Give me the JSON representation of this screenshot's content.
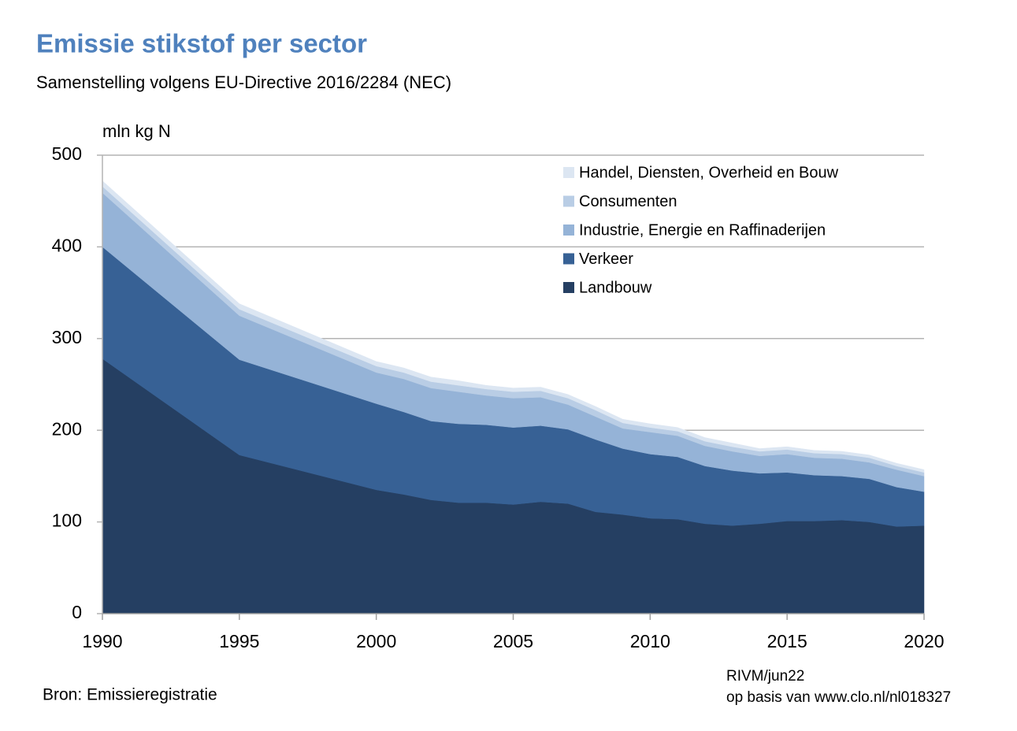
{
  "chart_data": {
    "type": "stacked-area",
    "title": "Emissie stikstof per sector",
    "subtitle": "Samenstelling volgens EU-Directive 2016/2284 (NEC)",
    "y_label": "mln kg N",
    "source": "Bron: Emissieregistratie",
    "notes": [
      "RIVM/jun22",
      "op basis van www.clo.nl/nl018327"
    ],
    "x": [
      1990,
      1995,
      2000,
      2001,
      2002,
      2003,
      2004,
      2005,
      2006,
      2007,
      2008,
      2009,
      2010,
      2011,
      2012,
      2013,
      2014,
      2015,
      2016,
      2017,
      2018,
      2019,
      2020
    ],
    "series": [
      {
        "name": "Landbouw",
        "color": "#253f62",
        "values": [
          278,
          173,
          135,
          130,
          124,
          121,
          121,
          119,
          122,
          120,
          111,
          108,
          104,
          103,
          98,
          96,
          98,
          101,
          101,
          102,
          100,
          95,
          96
        ]
      },
      {
        "name": "Verkeer",
        "color": "#376195",
        "values": [
          122,
          104,
          94,
          90,
          86,
          86,
          85,
          84,
          83,
          81,
          79,
          72,
          70,
          68,
          63,
          60,
          55,
          53,
          50,
          48,
          47,
          43,
          37
        ]
      },
      {
        "name": "Industrie, Energie en Raffinaderijen",
        "color": "#95b3d7",
        "values": [
          59,
          48,
          34,
          36,
          36,
          35,
          32,
          32,
          31,
          27,
          25,
          22,
          24,
          23,
          22,
          21,
          19,
          20,
          19,
          19,
          18,
          19,
          17
        ]
      },
      {
        "name": "Consumenten",
        "color": "#b9cde5",
        "values": [
          7,
          7,
          7,
          7,
          7,
          7,
          7,
          7,
          7,
          7,
          7,
          6,
          5,
          5,
          5,
          5,
          5,
          5,
          5,
          5,
          5,
          4,
          4
        ]
      },
      {
        "name": "Handel, Diensten, Overheid en Bouw",
        "color": "#dce6f2",
        "values": [
          6,
          6,
          5,
          5,
          5,
          5,
          4,
          4,
          4,
          4,
          4,
          4,
          4,
          4,
          4,
          4,
          3,
          3,
          3,
          3,
          3,
          3,
          3
        ]
      }
    ],
    "xlim": [
      1990,
      2020
    ],
    "xticks": [
      1990,
      1995,
      2000,
      2005,
      2010,
      2015,
      2020
    ],
    "ylim": [
      0,
      500
    ],
    "yticks": [
      0,
      100,
      200,
      300,
      400,
      500
    ],
    "grid": true,
    "legend": "top-right"
  }
}
